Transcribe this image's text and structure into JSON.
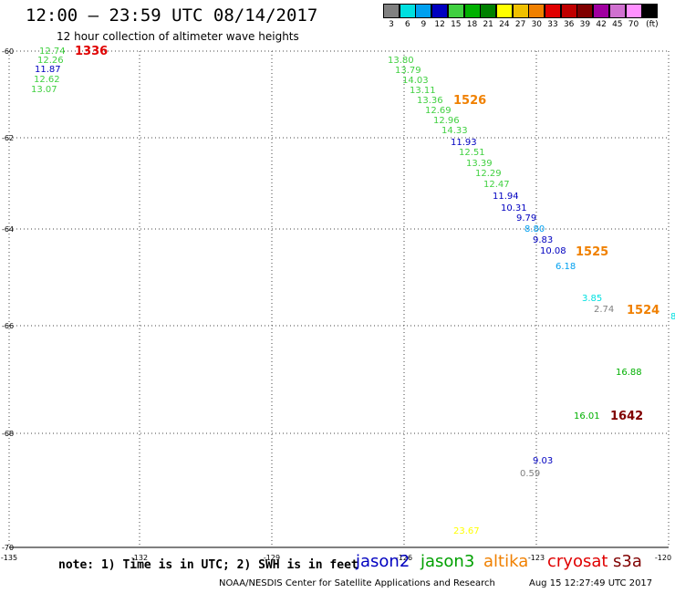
{
  "title": "12:00 – 23:59 UTC 08/14/2017",
  "subtitle": "12 hour collection of altimeter wave heights",
  "legend": {
    "unit": "(ft)",
    "swatches": [
      {
        "label": "3",
        "color": "#808080"
      },
      {
        "label": "6",
        "color": "#00e0e0"
      },
      {
        "label": "9",
        "color": "#00a0f0"
      },
      {
        "label": "12",
        "color": "#0000c0"
      },
      {
        "label": "15",
        "color": "#40d040"
      },
      {
        "label": "18",
        "color": "#00b000"
      },
      {
        "label": "21",
        "color": "#008000"
      },
      {
        "label": "24",
        "color": "#ffff00"
      },
      {
        "label": "27",
        "color": "#f0c000"
      },
      {
        "label": "30",
        "color": "#f08000"
      },
      {
        "label": "33",
        "color": "#e00000"
      },
      {
        "label": "36",
        "color": "#c00000"
      },
      {
        "label": "39",
        "color": "#800000"
      },
      {
        "label": "42",
        "color": "#a000a0"
      },
      {
        "label": "45",
        "color": "#d070d0"
      },
      {
        "label": "70",
        "color": "#ff90ff"
      },
      {
        "label": "",
        "color": "#000000"
      }
    ]
  },
  "axes": {
    "lat_labels": [
      "-60",
      "-62",
      "-64",
      "-66",
      "-68",
      "-70"
    ],
    "lon_labels": [
      "-135",
      "-132",
      "-129",
      "-126",
      "-123",
      "-120"
    ]
  },
  "observations": [
    {
      "text": "12.74",
      "color": "#40d040"
    },
    {
      "text": "12.26",
      "color": "#40d040"
    },
    {
      "text": "11.87",
      "color": "#0000c0"
    },
    {
      "text": "12.62",
      "color": "#40d040"
    },
    {
      "text": "13.07",
      "color": "#40d040"
    },
    {
      "text": "13.80",
      "color": "#40d040"
    },
    {
      "text": "13.79",
      "color": "#40d040"
    },
    {
      "text": "14.03",
      "color": "#40d040"
    },
    {
      "text": "13.11",
      "color": "#40d040"
    },
    {
      "text": "13.36",
      "color": "#40d040"
    },
    {
      "text": "12.69",
      "color": "#40d040"
    },
    {
      "text": "12.96",
      "color": "#40d040"
    },
    {
      "text": "14.33",
      "color": "#40d040"
    },
    {
      "text": "11.93",
      "color": "#0000c0"
    },
    {
      "text": "12.51",
      "color": "#40d040"
    },
    {
      "text": "13.39",
      "color": "#40d040"
    },
    {
      "text": "12.29",
      "color": "#40d040"
    },
    {
      "text": "12.47",
      "color": "#40d040"
    },
    {
      "text": "11.94",
      "color": "#0000c0"
    },
    {
      "text": "10.31",
      "color": "#0000c0"
    },
    {
      "text": "9.79",
      "color": "#0000c0"
    },
    {
      "text": "8.80",
      "color": "#00a0f0"
    },
    {
      "text": "9.83",
      "color": "#0000c0"
    },
    {
      "text": "10.08",
      "color": "#0000c0"
    },
    {
      "text": "6.18",
      "color": "#00a0f0"
    },
    {
      "text": "3.85",
      "color": "#00e0e0"
    },
    {
      "text": "2.74",
      "color": "#808080"
    },
    {
      "text": "8",
      "color": "#00e0e0"
    },
    {
      "text": "16.88",
      "color": "#00b000"
    },
    {
      "text": "16.01",
      "color": "#00b000"
    },
    {
      "text": "9.03",
      "color": "#0000c0"
    },
    {
      "text": "0.59",
      "color": "#808080"
    },
    {
      "text": "23.67",
      "color": "#ffff00"
    }
  ],
  "pass_labels": [
    {
      "text": "1336",
      "color": "#e00000"
    },
    {
      "text": "1526",
      "color": "#f08000"
    },
    {
      "text": "1525",
      "color": "#f08000"
    },
    {
      "text": "1524",
      "color": "#f08000"
    },
    {
      "text": "1642",
      "color": "#800000"
    }
  ],
  "footer": {
    "note": "note: 1) Time is in UTC; 2) SWH is in feet",
    "satellites": [
      {
        "name": "jason2",
        "color": "#0000c0"
      },
      {
        "name": "jason3",
        "color": "#00a000"
      },
      {
        "name": "altika",
        "color": "#f08000"
      },
      {
        "name": "cryosat",
        "color": "#e00000"
      },
      {
        "name": "s3a",
        "color": "#800000"
      }
    ],
    "credit": "NOAA/NESDIS Center for Satellite Applications and Research",
    "timestamp": "Aug 15 12:27:49 UTC 2017"
  }
}
